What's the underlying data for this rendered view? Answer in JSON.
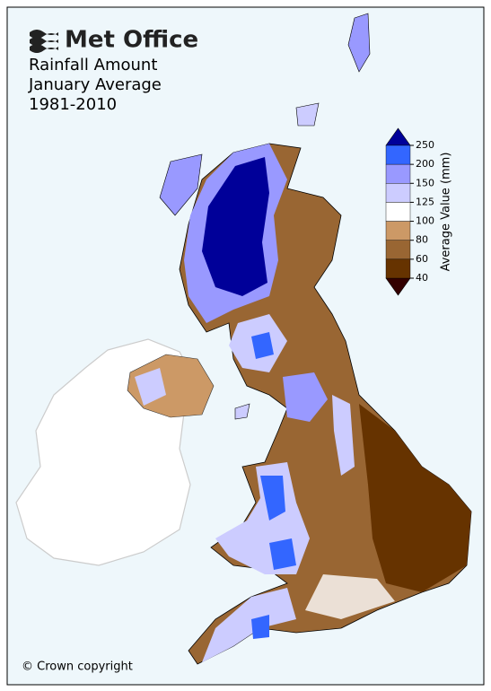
{
  "logo": "Met Office",
  "title": [
    "Rainfall Amount",
    "January Average",
    "1981-2010"
  ],
  "colorbar": {
    "label": "Average Value (mm)",
    "ticks": [
      250,
      200,
      150,
      125,
      100,
      80,
      60,
      40
    ],
    "colors": [
      "#3366ff",
      "#9999ff",
      "#ccccff",
      "#ffffff",
      "#cc9966",
      "#996633",
      "#663300"
    ],
    "over_color": "#000099",
    "under_color": "#330000"
  },
  "copyright": "© Crown copyright"
}
